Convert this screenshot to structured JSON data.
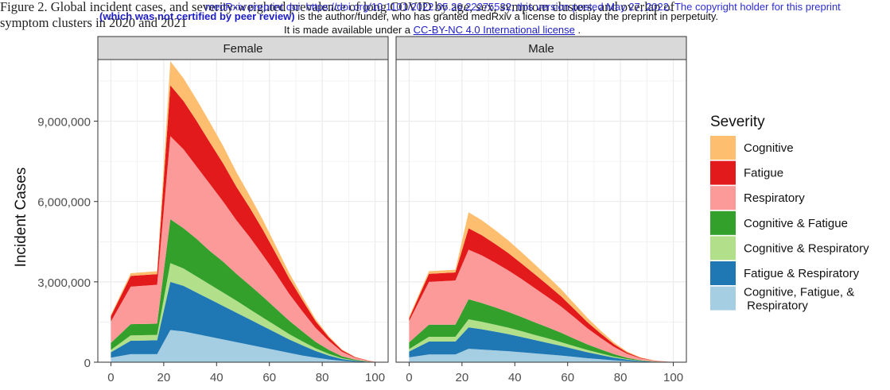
{
  "page": {
    "caption_line1": "Figure 2. Global incident cases, and severity-weighted prevalence of long COVID by age, sex, symptom clusters, and overlap of",
    "caption_line2": "symptom clusters in 2020 and 2021",
    "overlay_line1": "medRxiv preprint doi: https://doi.org/10.1101/2022.05.26.22275532; this version posted May 27, 2022. The copyright holder for this preprint",
    "overlay_line2_bold": "(which was not certified by peer review)",
    "overlay_line2_rest": " is the author/funder, who has granted medRxiv a license to display the preprint in perpetuity.",
    "overlay_line3_pre": "It is made available under a ",
    "overlay_line3_link": "CC-BY-NC 4.0 International license",
    "overlay_line3_post": " ."
  },
  "chart_data": {
    "type": "area",
    "stacked": true,
    "ylabel": "Incident Cases",
    "xlabel": "",
    "xlim": [
      0,
      100
    ],
    "ylim": [
      0,
      11300000
    ],
    "x_ticks": [
      0,
      20,
      40,
      60,
      80,
      100
    ],
    "y_ticks": [
      0,
      3000000,
      6000000,
      9000000
    ],
    "y_tick_labels": [
      "0",
      "3,000,000",
      "6,000,000",
      "9,000,000"
    ],
    "grid": true,
    "legend": {
      "title": "Severity",
      "placement": "right",
      "entries": [
        {
          "label": "Cognitive",
          "color": "#fdbf6f"
        },
        {
          "label": "Fatigue",
          "color": "#e31a1c"
        },
        {
          "label": "Respiratory",
          "color": "#fb9a99"
        },
        {
          "label": "Cognitive & Fatigue",
          "color": "#33a02c"
        },
        {
          "label": "Cognitive & Respiratory",
          "color": "#b2df8a"
        },
        {
          "label": "Fatigue & Respiratory",
          "color": "#1f78b4"
        },
        {
          "label": "Cognitive, Fatigue, &\n Respiratory",
          "color": "#a6cee3"
        }
      ]
    },
    "x": [
      0,
      7.5,
      17.5,
      22.5,
      27.5,
      32.5,
      37.5,
      42.5,
      47.5,
      52.5,
      57.5,
      62.5,
      67.5,
      72.5,
      77.5,
      82.5,
      87.5,
      92.5,
      97.5,
      100
    ],
    "panels": [
      {
        "name": "Female",
        "series": [
          {
            "name": "Cognitive, Fatigue, &\n Respiratory",
            "values": [
              170000,
              300000,
              300000,
              1200000,
              1150000,
              1050000,
              950000,
              850000,
              750000,
              650000,
              550000,
              450000,
              350000,
              250000,
              170000,
              100000,
              50000,
              20000,
              6000,
              2000
            ]
          },
          {
            "name": "Fatigue & Respiratory",
            "values": [
              200000,
              500000,
              520000,
              1800000,
              1700000,
              1550000,
              1400000,
              1250000,
              1100000,
              950000,
              800000,
              650000,
              500000,
              380000,
              250000,
              150000,
              70000,
              30000,
              10000,
              3000
            ]
          },
          {
            "name": "Cognitive & Respiratory",
            "values": [
              90000,
              200000,
              200000,
              700000,
              650000,
              600000,
              550000,
              500000,
              450000,
              380000,
              320000,
              260000,
              200000,
              150000,
              100000,
              60000,
              30000,
              12000,
              4000,
              1000
            ]
          },
          {
            "name": "Cognitive & Fatigue",
            "values": [
              260000,
              420000,
              420000,
              1640000,
              1500000,
              1400000,
              1250000,
              1150000,
              1000000,
              900000,
              780000,
              640000,
              500000,
              370000,
              240000,
              150000,
              70000,
              30000,
              10000,
              3000
            ]
          },
          {
            "name": "Respiratory",
            "values": [
              800000,
              1400000,
              1450000,
              3100000,
              2950000,
              2700000,
              2500000,
              2250000,
              2000000,
              1800000,
              1550000,
              1300000,
              1000000,
              750000,
              520000,
              340000,
              170000,
              70000,
              25000,
              8000
            ]
          },
          {
            "name": "Fatigue",
            "values": [
              200000,
              400000,
              400000,
              1900000,
              1800000,
              1700000,
              1550000,
              1420000,
              1250000,
              1100000,
              950000,
              750000,
              580000,
              420000,
              250000,
              130000,
              60000,
              25000,
              8000,
              2000
            ]
          },
          {
            "name": "Cognitive",
            "values": [
              50000,
              100000,
              110000,
              900000,
              850000,
              800000,
              750000,
              650000,
              550000,
              450000,
              370000,
              280000,
              200000,
              130000,
              80000,
              40000,
              20000,
              8000,
              2000,
              1000
            ]
          }
        ]
      },
      {
        "name": "Male",
        "series": [
          {
            "name": "Cognitive, Fatigue, &\n Respiratory",
            "values": [
              180000,
              290000,
              290000,
              500000,
              470000,
              440000,
              410000,
              370000,
              330000,
              290000,
              250000,
              200000,
              150000,
              110000,
              70000,
              40000,
              20000,
              8000,
              3000,
              1000
            ]
          },
          {
            "name": "Fatigue & Respiratory",
            "values": [
              220000,
              480000,
              480000,
              800000,
              760000,
              700000,
              640000,
              570000,
              500000,
              430000,
              360000,
              290000,
              220000,
              160000,
              100000,
              55000,
              25000,
              10000,
              3000,
              1000
            ]
          },
          {
            "name": "Cognitive & Respiratory",
            "values": [
              90000,
              180000,
              180000,
              300000,
              280000,
              260000,
              240000,
              220000,
              190000,
              170000,
              140000,
              110000,
              85000,
              60000,
              38000,
              20000,
              9000,
              4000,
              1000,
              500
            ]
          },
          {
            "name": "Cognitive & Fatigue",
            "values": [
              250000,
              450000,
              450000,
              750000,
              700000,
              650000,
              590000,
              530000,
              470000,
              410000,
              350000,
              280000,
              210000,
              150000,
              95000,
              50000,
              22000,
              9000,
              3000,
              1000
            ]
          },
          {
            "name": "Respiratory",
            "values": [
              800000,
              1600000,
              1650000,
              1850000,
              1780000,
              1670000,
              1550000,
              1420000,
              1280000,
              1130000,
              980000,
              800000,
              600000,
              430000,
              270000,
              150000,
              70000,
              28000,
              9000,
              3000
            ]
          },
          {
            "name": "Fatigue",
            "values": [
              100000,
              300000,
              300000,
              800000,
              750000,
              700000,
              650000,
              580000,
              520000,
              450000,
              380000,
              300000,
              230000,
              160000,
              100000,
              50000,
              22000,
              9000,
              3000,
              1000
            ]
          },
          {
            "name": "Cognitive",
            "values": [
              60000,
              100000,
              100000,
              600000,
              560000,
              520000,
              470000,
              420000,
              370000,
              320000,
              270000,
              210000,
              160000,
              110000,
              67000,
              35000,
              17000,
              7000,
              2000,
              500
            ]
          }
        ]
      }
    ]
  }
}
